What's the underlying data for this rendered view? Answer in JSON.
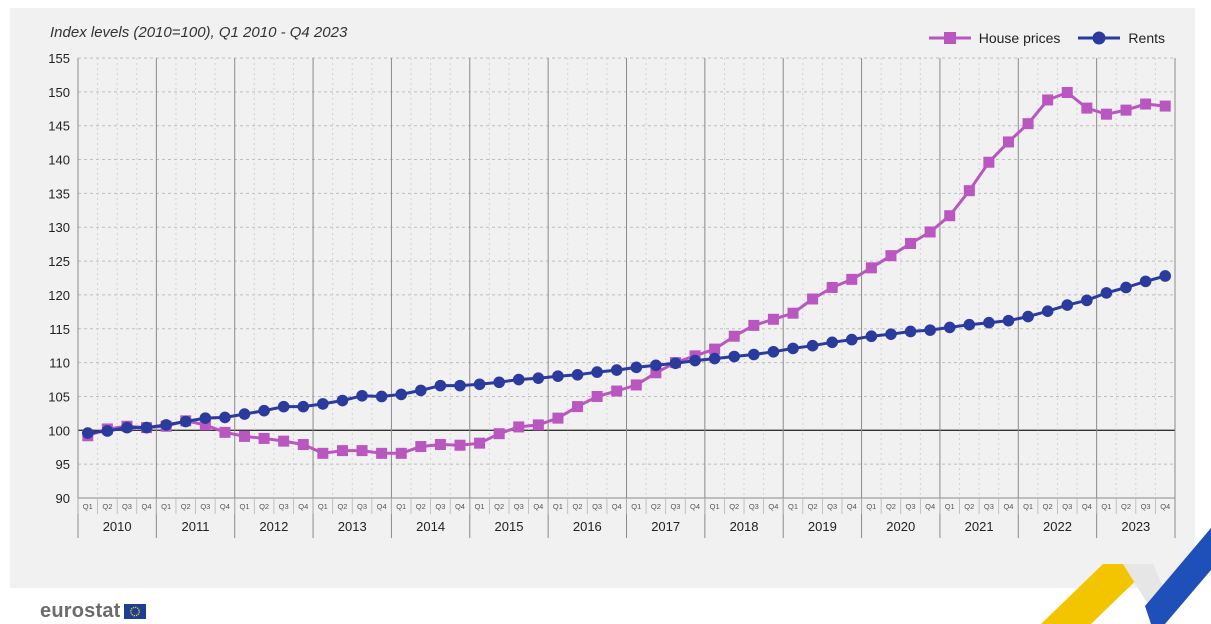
{
  "brand": {
    "name": "eurostat",
    "flag_color": "#1c3f94",
    "star_color": "#ffd200"
  },
  "chart_data": {
    "type": "line",
    "title": "",
    "subtitle": "Index levels (2010=100), Q1 2010 - Q4 2023",
    "xlabel": "",
    "ylabel": "",
    "ylim": [
      90,
      155
    ],
    "yticks": [
      90,
      95,
      100,
      105,
      110,
      115,
      120,
      125,
      130,
      135,
      140,
      145,
      150,
      155
    ],
    "reference_line": 100,
    "legend_position": "top-right",
    "grid": true,
    "years": [
      "2010",
      "2011",
      "2012",
      "2013",
      "2014",
      "2015",
      "2016",
      "2017",
      "2018",
      "2019",
      "2020",
      "2021",
      "2022",
      "2023"
    ],
    "quarters": [
      "Q1",
      "Q2",
      "Q3",
      "Q4"
    ],
    "series": [
      {
        "name": "House prices",
        "color": "#b956c0",
        "marker": "square",
        "values": [
          99.2,
          100.2,
          100.6,
          100.4,
          100.6,
          101.4,
          100.8,
          99.7,
          99.1,
          98.8,
          98.4,
          97.9,
          96.6,
          97.0,
          97.0,
          96.6,
          96.6,
          97.6,
          97.9,
          97.8,
          98.1,
          99.5,
          100.5,
          100.8,
          101.8,
          103.5,
          105.0,
          105.8,
          106.7,
          108.5,
          110.0,
          111.0,
          112.0,
          113.9,
          115.5,
          116.4,
          117.3,
          119.4,
          121.1,
          122.3,
          124.0,
          125.8,
          127.6,
          129.3,
          131.7,
          135.4,
          139.6,
          142.6,
          145.3,
          148.8,
          149.9,
          147.6,
          146.7,
          147.3,
          148.2,
          147.9
        ]
      },
      {
        "name": "Rents",
        "color": "#2b3a9d",
        "marker": "circle",
        "values": [
          99.6,
          99.9,
          100.4,
          100.4,
          100.8,
          101.3,
          101.8,
          101.9,
          102.4,
          102.9,
          103.5,
          103.5,
          103.9,
          104.4,
          105.1,
          105.0,
          105.3,
          105.9,
          106.6,
          106.6,
          106.8,
          107.1,
          107.5,
          107.7,
          108.0,
          108.2,
          108.6,
          108.9,
          109.3,
          109.6,
          109.9,
          110.3,
          110.6,
          110.9,
          111.2,
          111.6,
          112.1,
          112.5,
          113.0,
          113.4,
          113.9,
          114.2,
          114.6,
          114.8,
          115.2,
          115.6,
          115.9,
          116.2,
          116.8,
          117.6,
          118.5,
          119.2,
          120.3,
          121.1,
          122.0,
          122.8
        ]
      }
    ]
  }
}
